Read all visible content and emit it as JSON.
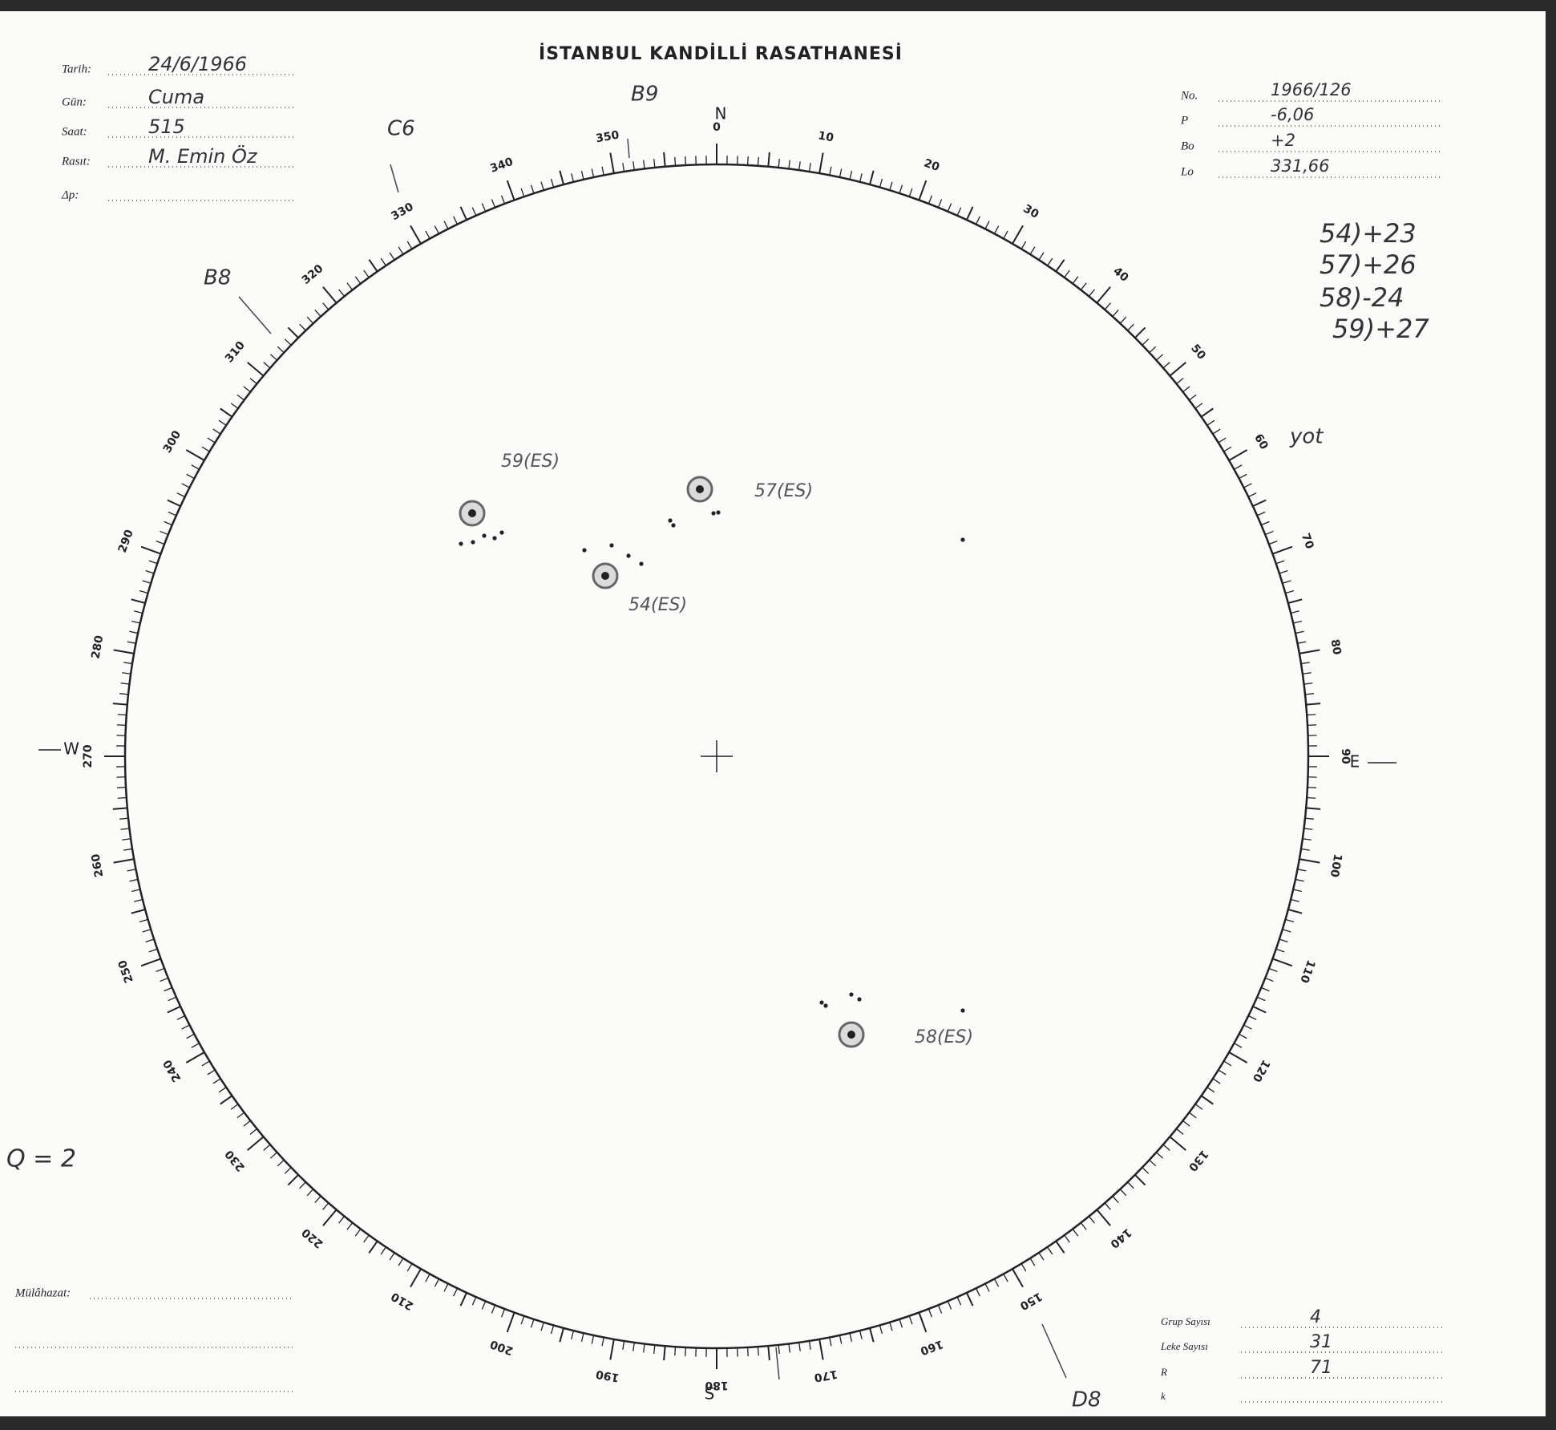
{
  "header": {
    "title": "İSTANBUL KANDİLLİ RASATHANESİ"
  },
  "form_left": {
    "fields": [
      {
        "label": "Tarih:",
        "value": "24/6/1966"
      },
      {
        "label": "Gün:",
        "value": "Cuma"
      },
      {
        "label": "Saat:",
        "value": "515"
      },
      {
        "label": "Rasıt:",
        "value": "M. Emin Öz"
      },
      {
        "label": "Δp:"
      }
    ]
  },
  "form_right": {
    "fields": [
      {
        "label": "No.",
        "value": "1966/126"
      },
      {
        "label": "P",
        "value": "-6,06"
      },
      {
        "label": "Bo",
        "value": "+2"
      },
      {
        "label": "Lo",
        "value": "331,66"
      }
    ]
  },
  "notes": [
    "54)+23",
    "57)+26",
    "58)-24",
    "59)+27"
  ],
  "dial": {
    "degrees": [
      0,
      10,
      20,
      30,
      40,
      50,
      60,
      70,
      80,
      90,
      100,
      110,
      120,
      130,
      140,
      150,
      160,
      170,
      180,
      190,
      200,
      210,
      220,
      230,
      240,
      250,
      260,
      270,
      280,
      290,
      300,
      310,
      320,
      330,
      340,
      350
    ],
    "compass": [
      "N",
      "E",
      "S",
      "W"
    ]
  },
  "annotations": [
    "C6",
    "B9",
    "B8",
    "D8",
    "yot"
  ],
  "spot_groups": [
    "59(ES)",
    "57(ES)",
    "54(ES)",
    "58(ES)"
  ],
  "quality": "Q = 2",
  "footer_left": {
    "label": "Mülâhazat:"
  },
  "footer_right": {
    "fields": [
      {
        "label": "Grup Sayısı",
        "value": "4"
      },
      {
        "label": "Leke Sayısı",
        "value": "31"
      },
      {
        "label": "R",
        "value": "71"
      },
      {
        "label": "k"
      }
    ]
  }
}
